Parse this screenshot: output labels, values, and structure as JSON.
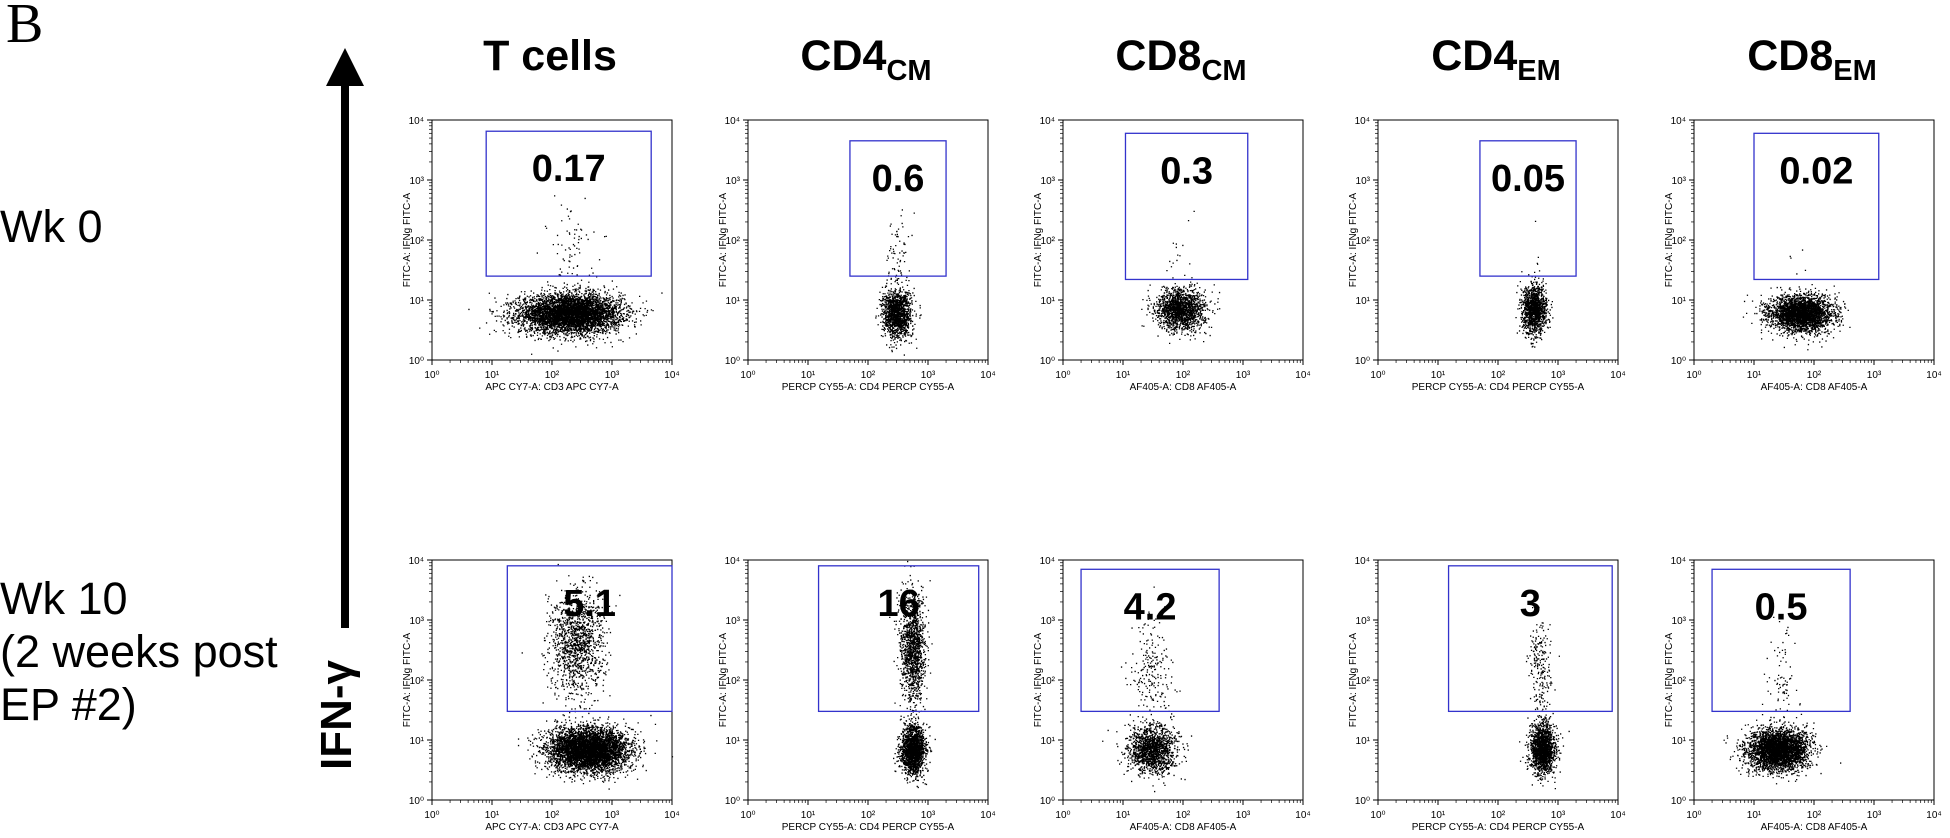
{
  "figure": {
    "panel_letter": "B",
    "y_axis_title": "IFN-γ",
    "columns": [
      {
        "name": "T cells",
        "main": "T cells",
        "sub": ""
      },
      {
        "name": "CD4CM",
        "main": "CD4",
        "sub": "CM"
      },
      {
        "name": "CD8CM",
        "main": "CD8",
        "sub": "CM"
      },
      {
        "name": "CD4EM",
        "main": "CD4",
        "sub": "EM"
      },
      {
        "name": "CD8EM",
        "main": "CD8",
        "sub": "EM"
      }
    ],
    "rows": [
      {
        "label": "Wk 0"
      },
      {
        "label": "Wk 10\n(2 weeks post\nEP #2)"
      }
    ],
    "gate_color": "#3333cc"
  },
  "chart_data": [
    {
      "type": "scatter",
      "title": "T cells",
      "row": "Wk 0",
      "xlabel": "APC CY7-A: CD3 APC CY7-A",
      "ylabel": "FITC-A: IFNg FITC-A",
      "xlim": [
        1,
        10000
      ],
      "ylim": [
        1,
        10000
      ],
      "xscale": "log",
      "yscale": "log",
      "xticks": [
        "10⁰",
        "10¹",
        "10²",
        "10³",
        "10⁴"
      ],
      "yticks": [
        "10⁰",
        "10¹",
        "10²",
        "10³",
        "10⁴"
      ],
      "gate": {
        "x": [
          8,
          4500
        ],
        "y": [
          25,
          6500
        ]
      },
      "gate_percent": "0.17",
      "populations": [
        {
          "cx": 200,
          "cy": 6,
          "sx": 0.42,
          "sy": 0.16,
          "n": 5200
        },
        {
          "cx": 200,
          "cy": 60,
          "sx": 0.2,
          "sy": 0.4,
          "n": 90
        }
      ]
    },
    {
      "type": "scatter",
      "title": "CD4CM",
      "row": "Wk 0",
      "xlabel": "PERCP CY55-A: CD4 PERCP CY55-A",
      "ylabel": "FITC-A: IFNg FITC-A",
      "xlim": [
        1,
        10000
      ],
      "ylim": [
        1,
        10000
      ],
      "xscale": "log",
      "yscale": "log",
      "xticks": [
        "10⁰",
        "10¹",
        "10²",
        "10³",
        "10⁴"
      ],
      "yticks": [
        "10⁰",
        "10¹",
        "10²",
        "10³",
        "10⁴"
      ],
      "gate": {
        "x": [
          50,
          2000
        ],
        "y": [
          25,
          4500
        ]
      },
      "gate_percent": "0.6",
      "populations": [
        {
          "cx": 300,
          "cy": 6,
          "sx": 0.12,
          "sy": 0.2,
          "n": 1400
        },
        {
          "cx": 300,
          "cy": 60,
          "sx": 0.1,
          "sy": 0.35,
          "n": 70
        }
      ]
    },
    {
      "type": "scatter",
      "title": "CD8CM",
      "row": "Wk 0",
      "xlabel": "AF405-A: CD8 AF405-A",
      "ylabel": "FITC-A: IFNg FITC-A",
      "xlim": [
        1,
        10000
      ],
      "ylim": [
        1,
        10000
      ],
      "xscale": "log",
      "yscale": "log",
      "xticks": [
        "10⁰",
        "10¹",
        "10²",
        "10³",
        "10⁴"
      ],
      "yticks": [
        "10⁰",
        "10¹",
        "10²",
        "10³",
        "10⁴"
      ],
      "gate": {
        "x": [
          11,
          1200
        ],
        "y": [
          22,
          6000
        ]
      },
      "gate_percent": "0.3",
      "populations": [
        {
          "cx": 90,
          "cy": 7,
          "sx": 0.2,
          "sy": 0.17,
          "n": 1600
        },
        {
          "cx": 100,
          "cy": 60,
          "sx": 0.15,
          "sy": 0.4,
          "n": 18
        }
      ]
    },
    {
      "type": "scatter",
      "title": "CD4EM",
      "row": "Wk 0",
      "xlabel": "PERCP CY55-A: CD4 PERCP CY55-A",
      "ylabel": "FITC-A: IFNg FITC-A",
      "xlim": [
        1,
        10000
      ],
      "ylim": [
        1,
        10000
      ],
      "xscale": "log",
      "yscale": "log",
      "xticks": [
        "10⁰",
        "10¹",
        "10²",
        "10³",
        "10⁴"
      ],
      "yticks": [
        "10⁰",
        "10¹",
        "10²",
        "10³",
        "10⁴"
      ],
      "gate": {
        "x": [
          50,
          2000
        ],
        "y": [
          25,
          4500
        ]
      },
      "gate_percent": "0.05",
      "populations": [
        {
          "cx": 400,
          "cy": 7,
          "sx": 0.1,
          "sy": 0.2,
          "n": 1300
        },
        {
          "cx": 400,
          "cy": 60,
          "sx": 0.08,
          "sy": 0.4,
          "n": 6
        }
      ]
    },
    {
      "type": "scatter",
      "title": "CD8EM",
      "row": "Wk 0",
      "xlabel": "AF405-A: CD8 AF405-A",
      "ylabel": "FITC-A: IFNg FITC-A",
      "xlim": [
        1,
        10000
      ],
      "ylim": [
        1,
        10000
      ],
      "xscale": "log",
      "yscale": "log",
      "xticks": [
        "10⁰",
        "10¹",
        "10²",
        "10³",
        "10⁴"
      ],
      "yticks": [
        "10⁰",
        "10¹",
        "10²",
        "10³",
        "10⁴"
      ],
      "gate": {
        "x": [
          10,
          1200
        ],
        "y": [
          22,
          6000
        ]
      },
      "gate_percent": "0.02",
      "populations": [
        {
          "cx": 60,
          "cy": 6,
          "sx": 0.26,
          "sy": 0.15,
          "n": 3000
        },
        {
          "cx": 60,
          "cy": 40,
          "sx": 0.2,
          "sy": 0.2,
          "n": 5
        }
      ]
    },
    {
      "type": "scatter",
      "title": "T cells",
      "row": "Wk 10 (2 weeks post EP #2)",
      "xlabel": "APC CY7-A: CD3 APC CY7-A",
      "ylabel": "FITC-A: IFNg FITC-A",
      "xlim": [
        1,
        10000
      ],
      "ylim": [
        1,
        10000
      ],
      "xscale": "log",
      "yscale": "log",
      "xticks": [
        "10⁰",
        "10¹",
        "10²",
        "10³",
        "10⁴"
      ],
      "yticks": [
        "10⁰",
        "10¹",
        "10²",
        "10³",
        "10⁴"
      ],
      "gate": {
        "x": [
          18,
          10000
        ],
        "y": [
          30,
          8000
        ]
      },
      "gate_percent": "5.1",
      "populations": [
        {
          "cx": 400,
          "cy": 7,
          "sx": 0.33,
          "sy": 0.18,
          "n": 5000
        },
        {
          "cx": 250,
          "cy": 400,
          "sx": 0.22,
          "sy": 0.45,
          "n": 1300
        }
      ]
    },
    {
      "type": "scatter",
      "title": "CD4CM",
      "row": "Wk 10 (2 weeks post EP #2)",
      "xlabel": "PERCP CY55-A: CD4 PERCP CY55-A",
      "ylabel": "FITC-A: IFNg FITC-A",
      "xlim": [
        1,
        10000
      ],
      "ylim": [
        1,
        10000
      ],
      "xscale": "log",
      "yscale": "log",
      "xticks": [
        "10⁰",
        "10¹",
        "10²",
        "10³",
        "10⁴"
      ],
      "yticks": [
        "10⁰",
        "10¹",
        "10²",
        "10³",
        "10⁴"
      ],
      "gate": {
        "x": [
          15,
          7000
        ],
        "y": [
          30,
          8000
        ]
      },
      "gate_percent": "16",
      "populations": [
        {
          "cx": 550,
          "cy": 7,
          "sx": 0.1,
          "sy": 0.2,
          "n": 1800
        },
        {
          "cx": 550,
          "cy": 350,
          "sx": 0.1,
          "sy": 0.45,
          "n": 1300
        }
      ]
    },
    {
      "type": "scatter",
      "title": "CD8CM",
      "row": "Wk 10 (2 weeks post EP #2)",
      "xlabel": "AF405-A: CD8 AF405-A",
      "ylabel": "FITC-A: IFNg FITC-A",
      "xlim": [
        1,
        10000
      ],
      "ylim": [
        1,
        10000
      ],
      "xscale": "log",
      "yscale": "log",
      "xticks": [
        "10⁰",
        "10¹",
        "10²",
        "10³",
        "10⁴"
      ],
      "yticks": [
        "10⁰",
        "10¹",
        "10²",
        "10³",
        "10⁴"
      ],
      "gate": {
        "x": [
          2,
          400
        ],
        "y": [
          30,
          7000
        ]
      },
      "gate_percent": "4.2",
      "populations": [
        {
          "cx": 30,
          "cy": 7,
          "sx": 0.2,
          "sy": 0.2,
          "n": 1500
        },
        {
          "cx": 30,
          "cy": 150,
          "sx": 0.15,
          "sy": 0.45,
          "n": 200
        }
      ]
    },
    {
      "type": "scatter",
      "title": "CD4EM",
      "row": "Wk 10 (2 weeks post EP #2)",
      "xlabel": "PERCP CY55-A: CD4 PERCP CY55-A",
      "ylabel": "FITC-A: IFNg FITC-A",
      "xlim": [
        1,
        10000
      ],
      "ylim": [
        1,
        10000
      ],
      "xscale": "log",
      "yscale": "log",
      "xticks": [
        "10⁰",
        "10¹",
        "10²",
        "10³",
        "10⁴"
      ],
      "yticks": [
        "10⁰",
        "10¹",
        "10²",
        "10³",
        "10⁴"
      ],
      "gate": {
        "x": [
          15,
          8000
        ],
        "y": [
          30,
          8000
        ]
      },
      "gate_percent": "3",
      "populations": [
        {
          "cx": 550,
          "cy": 7,
          "sx": 0.1,
          "sy": 0.2,
          "n": 1700
        },
        {
          "cx": 500,
          "cy": 150,
          "sx": 0.1,
          "sy": 0.45,
          "n": 220
        }
      ]
    },
    {
      "type": "scatter",
      "title": "CD8EM",
      "row": "Wk 10 (2 weeks post EP #2)",
      "xlabel": "AF405-A: CD8 AF405-A",
      "ylabel": "FITC-A: IFNg FITC-A",
      "xlim": [
        1,
        10000
      ],
      "ylim": [
        1,
        10000
      ],
      "xscale": "log",
      "yscale": "log",
      "xticks": [
        "10⁰",
        "10¹",
        "10²",
        "10³",
        "10⁴"
      ],
      "yticks": [
        "10⁰",
        "10¹",
        "10²",
        "10³",
        "10⁴"
      ],
      "gate": {
        "x": [
          2,
          400
        ],
        "y": [
          30,
          7000
        ]
      },
      "gate_percent": "0.5",
      "populations": [
        {
          "cx": 25,
          "cy": 7,
          "sx": 0.25,
          "sy": 0.17,
          "n": 3500
        },
        {
          "cx": 30,
          "cy": 120,
          "sx": 0.12,
          "sy": 0.45,
          "n": 80
        }
      ]
    }
  ]
}
